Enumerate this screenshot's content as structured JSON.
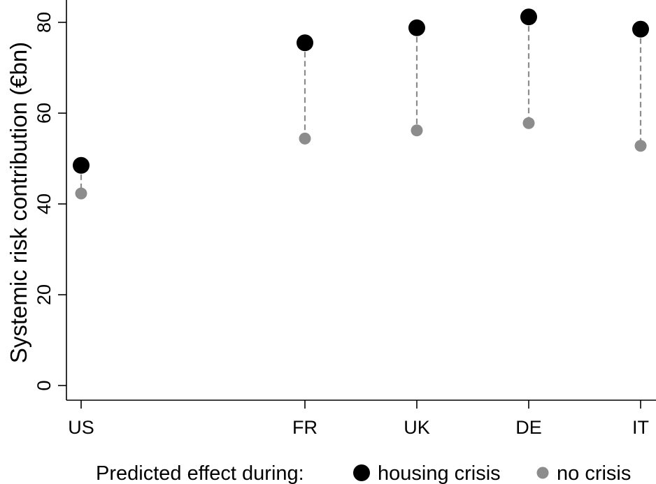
{
  "chart_data": {
    "type": "scatter",
    "title": "",
    "ylabel": "Systemic risk contribution (€bn)",
    "xlabel": "",
    "ylim": [
      0,
      85
    ],
    "yticks": [
      0,
      20,
      40,
      60,
      80
    ],
    "grid": false,
    "legend_position": "bottom",
    "categories": [
      "US",
      "FR",
      "UK",
      "DE",
      "IT"
    ],
    "x_positions": [
      2007,
      2017,
      2022,
      2027,
      2032
    ],
    "series": [
      {
        "name": "housing crisis",
        "color": "#000000",
        "values": [
          48.5,
          75.5,
          78.8,
          81.2,
          78.5
        ]
      },
      {
        "name": "no crisis",
        "color": "#8c8c8c",
        "values": [
          42.3,
          54.4,
          56.2,
          57.8,
          52.8
        ]
      }
    ],
    "connector": {
      "style": "dashed",
      "color": "#8c8c8c"
    }
  },
  "legend": {
    "title": "Predicted effect during:",
    "items": [
      "housing crisis",
      "no crisis"
    ]
  }
}
